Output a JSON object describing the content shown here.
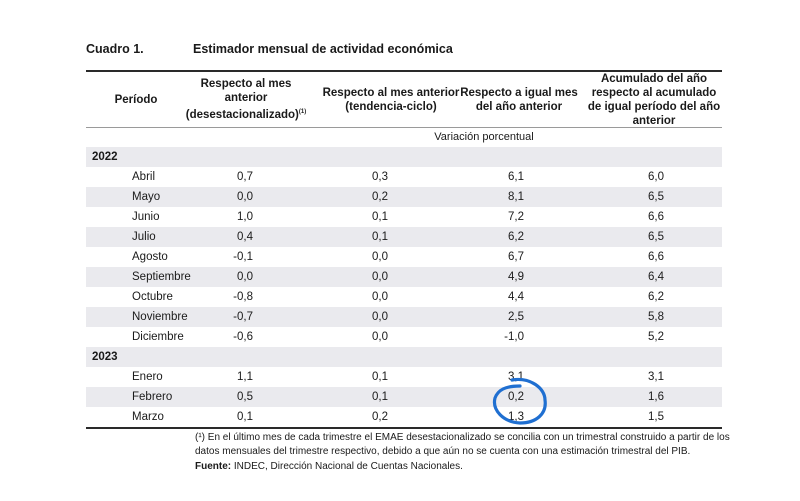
{
  "caption": {
    "number": "Cuadro 1.",
    "title": "Estimador mensual de actividad económica"
  },
  "headers": {
    "periodo": "Período",
    "col1": "Respecto al mes anterior (desestacionalizado)",
    "col1_note": "(1)",
    "col2": "Respecto al mes anterior (tendencia-ciclo)",
    "col3": "Respecto a igual mes del año anterior",
    "col4": "Acumulado del año respecto al acumulado de igual período del año anterior"
  },
  "unit_label": "Variación porcentual",
  "years": [
    {
      "year": "2022",
      "rows": [
        {
          "mes": "Abril",
          "v": [
            "0,7",
            "0,3",
            "6,1",
            "6,0"
          ]
        },
        {
          "mes": "Mayo",
          "v": [
            "0,0",
            "0,2",
            "8,1",
            "6,5"
          ]
        },
        {
          "mes": "Junio",
          "v": [
            "1,0",
            "0,1",
            "7,2",
            "6,6"
          ]
        },
        {
          "mes": "Julio",
          "v": [
            "0,4",
            "0,1",
            "6,2",
            "6,5"
          ]
        },
        {
          "mes": "Agosto",
          "v": [
            "-0,1",
            "0,0",
            "6,7",
            "6,6"
          ]
        },
        {
          "mes": "Septiembre",
          "v": [
            "0,0",
            "0,0",
            "4,9",
            "6,4"
          ]
        },
        {
          "mes": "Octubre",
          "v": [
            "-0,8",
            "0,0",
            "4,4",
            "6,2"
          ]
        },
        {
          "mes": "Noviembre",
          "v": [
            "-0,7",
            "0,0",
            "2,5",
            "5,8"
          ]
        },
        {
          "mes": "Diciembre",
          "v": [
            "-0,6",
            "0,0",
            "-1,0",
            "5,2"
          ]
        }
      ]
    },
    {
      "year": "2023",
      "rows": [
        {
          "mes": "Enero",
          "v": [
            "1,1",
            "0,1",
            "3,1",
            "3,1"
          ]
        },
        {
          "mes": "Febrero",
          "v": [
            "0,5",
            "0,1",
            "0,2",
            "1,6"
          ]
        },
        {
          "mes": "Marzo",
          "v": [
            "0,1",
            "0,2",
            "1,3",
            "1,5"
          ]
        }
      ]
    }
  ],
  "footnote": {
    "marker": "(¹)",
    "text": "En el último mes de cada trimestre el EMAE desestacionalizado se concilia con un trimestral construido a partir de los datos mensuales del trimestre respectivo, debido a que aún no se cuenta con una estimación trimestral del PIB.",
    "source_label": "Fuente:",
    "source_text": "INDEC, Dirección Nacional de Cuentas Nacionales."
  },
  "annotation": {
    "color": "#1f6fd1"
  }
}
